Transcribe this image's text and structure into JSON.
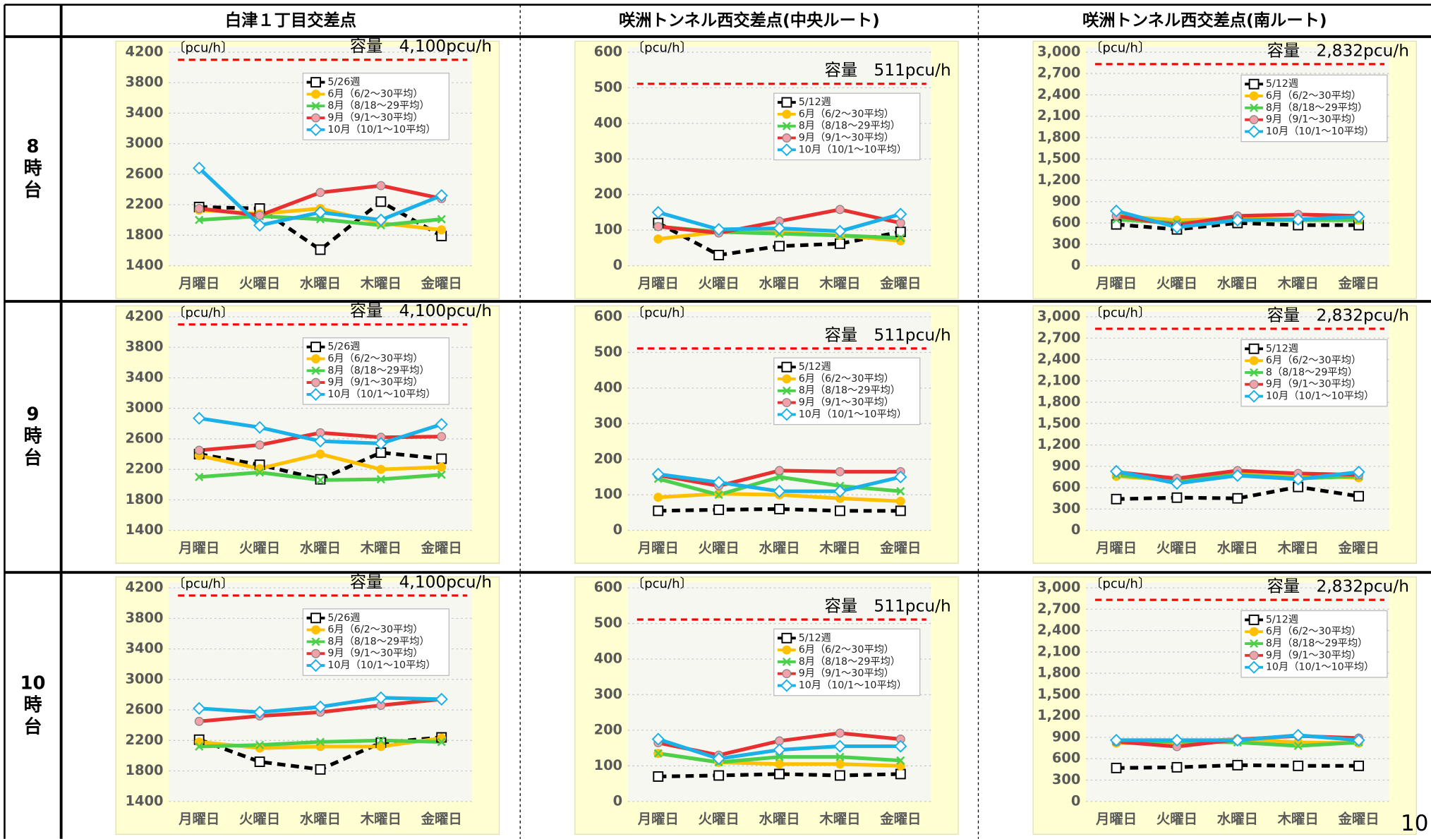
{
  "table": {
    "columns": [
      "白津１丁目交差点",
      "咲洲トンネル西交差点(中央ルート)",
      "咲洲トンネル西交差点(南ルート)"
    ],
    "row_labels": [
      [
        "8",
        "時",
        "台"
      ],
      [
        "9",
        "時",
        "台"
      ],
      [
        "10",
        "時",
        "台"
      ]
    ]
  },
  "page_number": "10",
  "chart_data": [
    {
      "type": "line",
      "y_label": "〔pcu/h〕",
      "categories": [
        "月曜日",
        "火曜日",
        "水曜日",
        "木曜日",
        "金曜日"
      ],
      "ylim": [
        1400,
        4200
      ],
      "yticks": [
        1400,
        1800,
        2200,
        2600,
        3000,
        3400,
        3800,
        4200
      ],
      "grid": true,
      "capacity": {
        "value": 4100,
        "label": "容量　4,100pcu/h",
        "color": "#ff0000"
      },
      "series": [
        {
          "name": "5/26週",
          "color": "#000000",
          "dash": true,
          "marker": "square",
          "values": [
            2170,
            2150,
            1610,
            2240,
            1790
          ]
        },
        {
          "name": "6月（6/2～30平均）",
          "color": "#ffc000",
          "marker": "circle",
          "values": [
            2130,
            2080,
            2150,
            1960,
            1870
          ]
        },
        {
          "name": "8月（8/18～29平均）",
          "color": "#4cd04c",
          "marker": "x",
          "values": [
            2000,
            2050,
            2010,
            1930,
            2010
          ]
        },
        {
          "name": "9月（9/1～30平均）",
          "color": "#e83030",
          "marker": "circle",
          "values": [
            2150,
            2060,
            2360,
            2450,
            2280
          ]
        },
        {
          "name": "10月（10/1～10平均）",
          "color": "#1ab0e8",
          "marker": "diamond",
          "values": [
            2680,
            1930,
            2100,
            2000,
            2320
          ]
        }
      ]
    },
    {
      "type": "line",
      "y_label": "〔pcu/h〕",
      "categories": [
        "月曜日",
        "火曜日",
        "水曜日",
        "木曜日",
        "金曜日"
      ],
      "ylim": [
        0,
        600
      ],
      "yticks": [
        0,
        100,
        200,
        300,
        400,
        500,
        600
      ],
      "grid": true,
      "capacity": {
        "value": 511,
        "label": "容量　511pcu/h",
        "color": "#ff0000"
      },
      "series": [
        {
          "name": "5/12週",
          "color": "#000000",
          "dash": true,
          "marker": "square",
          "values": [
            120,
            30,
            55,
            62,
            95
          ]
        },
        {
          "name": "6月（6/2～30平均）",
          "color": "#ffc000",
          "marker": "circle",
          "values": [
            75,
            95,
            95,
            85,
            70
          ]
        },
        {
          "name": "8月（8/18～29平均）",
          "color": "#4cd04c",
          "marker": "x",
          "values": [
            110,
            95,
            90,
            85,
            78
          ]
        },
        {
          "name": "9月（9/1～30平均）",
          "color": "#e83030",
          "marker": "circle",
          "values": [
            110,
            92,
            125,
            158,
            120
          ]
        },
        {
          "name": "10月（10/1～10平均）",
          "color": "#1ab0e8",
          "marker": "diamond",
          "values": [
            150,
            102,
            105,
            97,
            145
          ]
        }
      ]
    },
    {
      "type": "line",
      "y_label": "〔pcu/h〕",
      "categories": [
        "月曜日",
        "火曜日",
        "水曜日",
        "木曜日",
        "金曜日"
      ],
      "ylim": [
        0,
        3000
      ],
      "yticks": [
        0,
        300,
        600,
        900,
        {
          "value": 1200,
          "label": "1,200"
        },
        {
          "value": 1500,
          "label": "1,500"
        },
        {
          "value": 1800,
          "label": "1,800"
        },
        {
          "value": 2100,
          "label": "2,100"
        },
        {
          "value": 2400,
          "label": "2,400"
        },
        {
          "value": 2700,
          "label": "2,700"
        },
        {
          "value": 3000,
          "label": "3,000"
        }
      ],
      "grid": true,
      "capacity": {
        "value": 2832,
        "label": "容量　2,832pcu/h",
        "color": "#ff0000"
      },
      "series": [
        {
          "name": "5/12週",
          "color": "#000000",
          "dash": true,
          "marker": "square",
          "values": [
            580,
            510,
            600,
            570,
            570
          ]
        },
        {
          "name": "6月（6/2～30平均）",
          "color": "#ffc000",
          "marker": "circle",
          "values": [
            700,
            640,
            660,
            650,
            640
          ]
        },
        {
          "name": "8月（8/18～29平均）",
          "color": "#4cd04c",
          "marker": "x",
          "values": [
            650,
            600,
            640,
            640,
            640
          ]
        },
        {
          "name": "9月（9/1～30平均）",
          "color": "#e83030",
          "marker": "circle",
          "values": [
            700,
            570,
            700,
            720,
            700
          ]
        },
        {
          "name": "10月（10/1～10平均）",
          "color": "#1ab0e8",
          "marker": "diamond",
          "values": [
            770,
            540,
            640,
            650,
            690
          ]
        }
      ]
    },
    {
      "type": "line",
      "y_label": "〔pcu/h〕",
      "categories": [
        "月曜日",
        "火曜日",
        "水曜日",
        "木曜日",
        "金曜日"
      ],
      "ylim": [
        1400,
        4200
      ],
      "yticks": [
        1400,
        1800,
        2200,
        2600,
        3000,
        3400,
        3800,
        4200
      ],
      "grid": true,
      "capacity": {
        "value": 4100,
        "label": "容量　4,100pcu/h",
        "color": "#ff0000"
      },
      "series": [
        {
          "name": "5/26週",
          "color": "#000000",
          "dash": true,
          "marker": "square",
          "values": [
            2400,
            2260,
            2070,
            2420,
            2340
          ]
        },
        {
          "name": "6月（6/2～30平均）",
          "color": "#ffc000",
          "marker": "circle",
          "values": [
            2380,
            2210,
            2400,
            2200,
            2230
          ]
        },
        {
          "name": "8月（8/18～29平均）",
          "color": "#4cd04c",
          "marker": "x",
          "values": [
            2100,
            2160,
            2060,
            2070,
            2130
          ]
        },
        {
          "name": "9月（9/1～30平均）",
          "color": "#e83030",
          "marker": "circle",
          "values": [
            2450,
            2520,
            2680,
            2620,
            2630
          ]
        },
        {
          "name": "10月（10/1～10平均）",
          "color": "#1ab0e8",
          "marker": "diamond",
          "values": [
            2870,
            2750,
            2570,
            2540,
            2790
          ]
        }
      ]
    },
    {
      "type": "line",
      "y_label": "〔pcu/h〕",
      "categories": [
        "月曜日",
        "火曜日",
        "水曜日",
        "木曜日",
        "金曜日"
      ],
      "ylim": [
        0,
        600
      ],
      "yticks": [
        0,
        100,
        200,
        300,
        400,
        500,
        600
      ],
      "grid": true,
      "capacity": {
        "value": 511,
        "label": "容量　511pcu/h",
        "color": "#ff0000"
      },
      "series": [
        {
          "name": "5/12週",
          "color": "#000000",
          "dash": true,
          "marker": "square",
          "values": [
            55,
            58,
            60,
            55,
            55
          ]
        },
        {
          "name": "6月（6/2～30平均）",
          "color": "#ffc000",
          "marker": "circle",
          "values": [
            93,
            103,
            100,
            90,
            82
          ]
        },
        {
          "name": "8月（8/18～29平均）",
          "color": "#4cd04c",
          "marker": "x",
          "values": [
            145,
            100,
            150,
            125,
            110
          ]
        },
        {
          "name": "9月（9/1～30平均）",
          "color": "#e83030",
          "marker": "circle",
          "values": [
            155,
            125,
            168,
            165,
            165
          ]
        },
        {
          "name": "10月（10/1～10平均）",
          "color": "#1ab0e8",
          "marker": "diamond",
          "values": [
            158,
            135,
            110,
            110,
            150
          ]
        }
      ]
    },
    {
      "type": "line",
      "y_label": "〔pcu/h〕",
      "categories": [
        "月曜日",
        "火曜日",
        "水曜日",
        "木曜日",
        "金曜日"
      ],
      "ylim": [
        0,
        3000
      ],
      "yticks": [
        0,
        300,
        600,
        900,
        {
          "value": 1200,
          "label": "1,200"
        },
        {
          "value": 1500,
          "label": "1,500"
        },
        {
          "value": 1800,
          "label": "1,800"
        },
        {
          "value": 2100,
          "label": "2,100"
        },
        {
          "value": 2400,
          "label": "2,400"
        },
        {
          "value": 2700,
          "label": "2,700"
        },
        {
          "value": 3000,
          "label": "3,000"
        }
      ],
      "grid": true,
      "capacity": {
        "value": 2832,
        "label": "容量　2,832pcu/h",
        "color": "#ff0000"
      },
      "series": [
        {
          "name": "5/12週",
          "color": "#000000",
          "dash": true,
          "marker": "square",
          "values": [
            440,
            460,
            450,
            610,
            480
          ]
        },
        {
          "name": "6月（6/2～30平均）",
          "color": "#ffc000",
          "marker": "circle",
          "values": [
            760,
            700,
            800,
            770,
            740
          ]
        },
        {
          "name": "8（8/18～29平均）",
          "color": "#4cd04c",
          "marker": "x",
          "values": [
            780,
            700,
            780,
            730,
            760
          ]
        },
        {
          "name": "9月（9/1～30平均）",
          "color": "#e83030",
          "marker": "circle",
          "values": [
            820,
            730,
            840,
            800,
            780
          ]
        },
        {
          "name": "10月（10/1～10平均）",
          "color": "#1ab0e8",
          "marker": "diamond",
          "values": [
            830,
            660,
            770,
            720,
            820
          ]
        }
      ]
    },
    {
      "type": "line",
      "y_label": "〔pcu/h〕",
      "categories": [
        "月曜日",
        "火曜日",
        "水曜日",
        "木曜日",
        "金曜日"
      ],
      "ylim": [
        1400,
        4200
      ],
      "yticks": [
        1400,
        1800,
        2200,
        2600,
        3000,
        3400,
        3800,
        4200
      ],
      "grid": true,
      "capacity": {
        "value": 4100,
        "label": "容量　4,100pcu/h",
        "color": "#ff0000"
      },
      "series": [
        {
          "name": "5/26週",
          "color": "#000000",
          "dash": true,
          "marker": "square",
          "values": [
            2210,
            1920,
            1820,
            2170,
            2240
          ]
        },
        {
          "name": "6月（6/2～30平均）",
          "color": "#ffc000",
          "marker": "circle",
          "values": [
            2180,
            2100,
            2120,
            2120,
            2230
          ]
        },
        {
          "name": "8月（8/18～29平均）",
          "color": "#4cd04c",
          "marker": "x",
          "values": [
            2120,
            2140,
            2180,
            2200,
            2180
          ]
        },
        {
          "name": "9月（9/1～30平均）",
          "color": "#e83030",
          "marker": "circle",
          "values": [
            2450,
            2520,
            2570,
            2660,
            2740
          ]
        },
        {
          "name": "10月（10/1～10平均）",
          "color": "#1ab0e8",
          "marker": "diamond",
          "values": [
            2620,
            2570,
            2640,
            2760,
            2740
          ]
        }
      ]
    },
    {
      "type": "line",
      "y_label": "〔pcu/h〕",
      "categories": [
        "月曜日",
        "火曜日",
        "水曜日",
        "木曜日",
        "金曜日"
      ],
      "ylim": [
        0,
        600
      ],
      "yticks": [
        0,
        100,
        200,
        300,
        400,
        500,
        600
      ],
      "grid": true,
      "capacity": {
        "value": 511,
        "label": "容量　511pcu/h",
        "color": "#ff0000"
      },
      "series": [
        {
          "name": "5/12週",
          "color": "#000000",
          "dash": true,
          "marker": "square",
          "values": [
            70,
            73,
            77,
            73,
            77
          ]
        },
        {
          "name": "6月（6/2～30平均）",
          "color": "#ffc000",
          "marker": "circle",
          "values": [
            135,
            110,
            105,
            105,
            100
          ]
        },
        {
          "name": "8月（8/18～29平均）",
          "color": "#4cd04c",
          "marker": "x",
          "values": [
            135,
            110,
            125,
            125,
            115
          ]
        },
        {
          "name": "9月（9/1～30平均）",
          "color": "#e83030",
          "marker": "circle",
          "values": [
            165,
            130,
            170,
            192,
            175
          ]
        },
        {
          "name": "10月（10/1～10平均）",
          "color": "#1ab0e8",
          "marker": "diamond",
          "values": [
            175,
            120,
            145,
            155,
            155
          ]
        }
      ]
    },
    {
      "type": "line",
      "y_label": "〔pcu/h〕",
      "categories": [
        "月曜日",
        "火曜日",
        "水曜日",
        "木曜日",
        "金曜日"
      ],
      "ylim": [
        0,
        3000
      ],
      "yticks": [
        0,
        300,
        600,
        900,
        {
          "value": 1200,
          "label": "1,200"
        },
        {
          "value": 1500,
          "label": "1,500"
        },
        {
          "value": 1800,
          "label": "1,800"
        },
        {
          "value": 2100,
          "label": "2,100"
        },
        {
          "value": 2400,
          "label": "2,400"
        },
        {
          "value": 2700,
          "label": "2,700"
        },
        {
          "value": 3000,
          "label": "3,000"
        }
      ],
      "grid": true,
      "capacity": {
        "value": 2832,
        "label": "容量　2,832pcu/h",
        "color": "#ff0000"
      },
      "series": [
        {
          "name": "5/12週",
          "color": "#000000",
          "dash": true,
          "marker": "square",
          "values": [
            470,
            480,
            510,
            500,
            500
          ]
        },
        {
          "name": "6月（6/2～30平均）",
          "color": "#ffc000",
          "marker": "circle",
          "values": [
            820,
            820,
            880,
            830,
            820
          ]
        },
        {
          "name": "8月（8/18～29平均）",
          "color": "#4cd04c",
          "marker": "x",
          "values": [
            840,
            840,
            830,
            780,
            830
          ]
        },
        {
          "name": "9月（9/1～30平均）",
          "color": "#e83030",
          "marker": "circle",
          "values": [
            840,
            770,
            870,
            920,
            890
          ]
        },
        {
          "name": "10月（10/1～10平均）",
          "color": "#1ab0e8",
          "marker": "diamond",
          "values": [
            860,
            860,
            860,
            930,
            860
          ]
        }
      ]
    }
  ]
}
